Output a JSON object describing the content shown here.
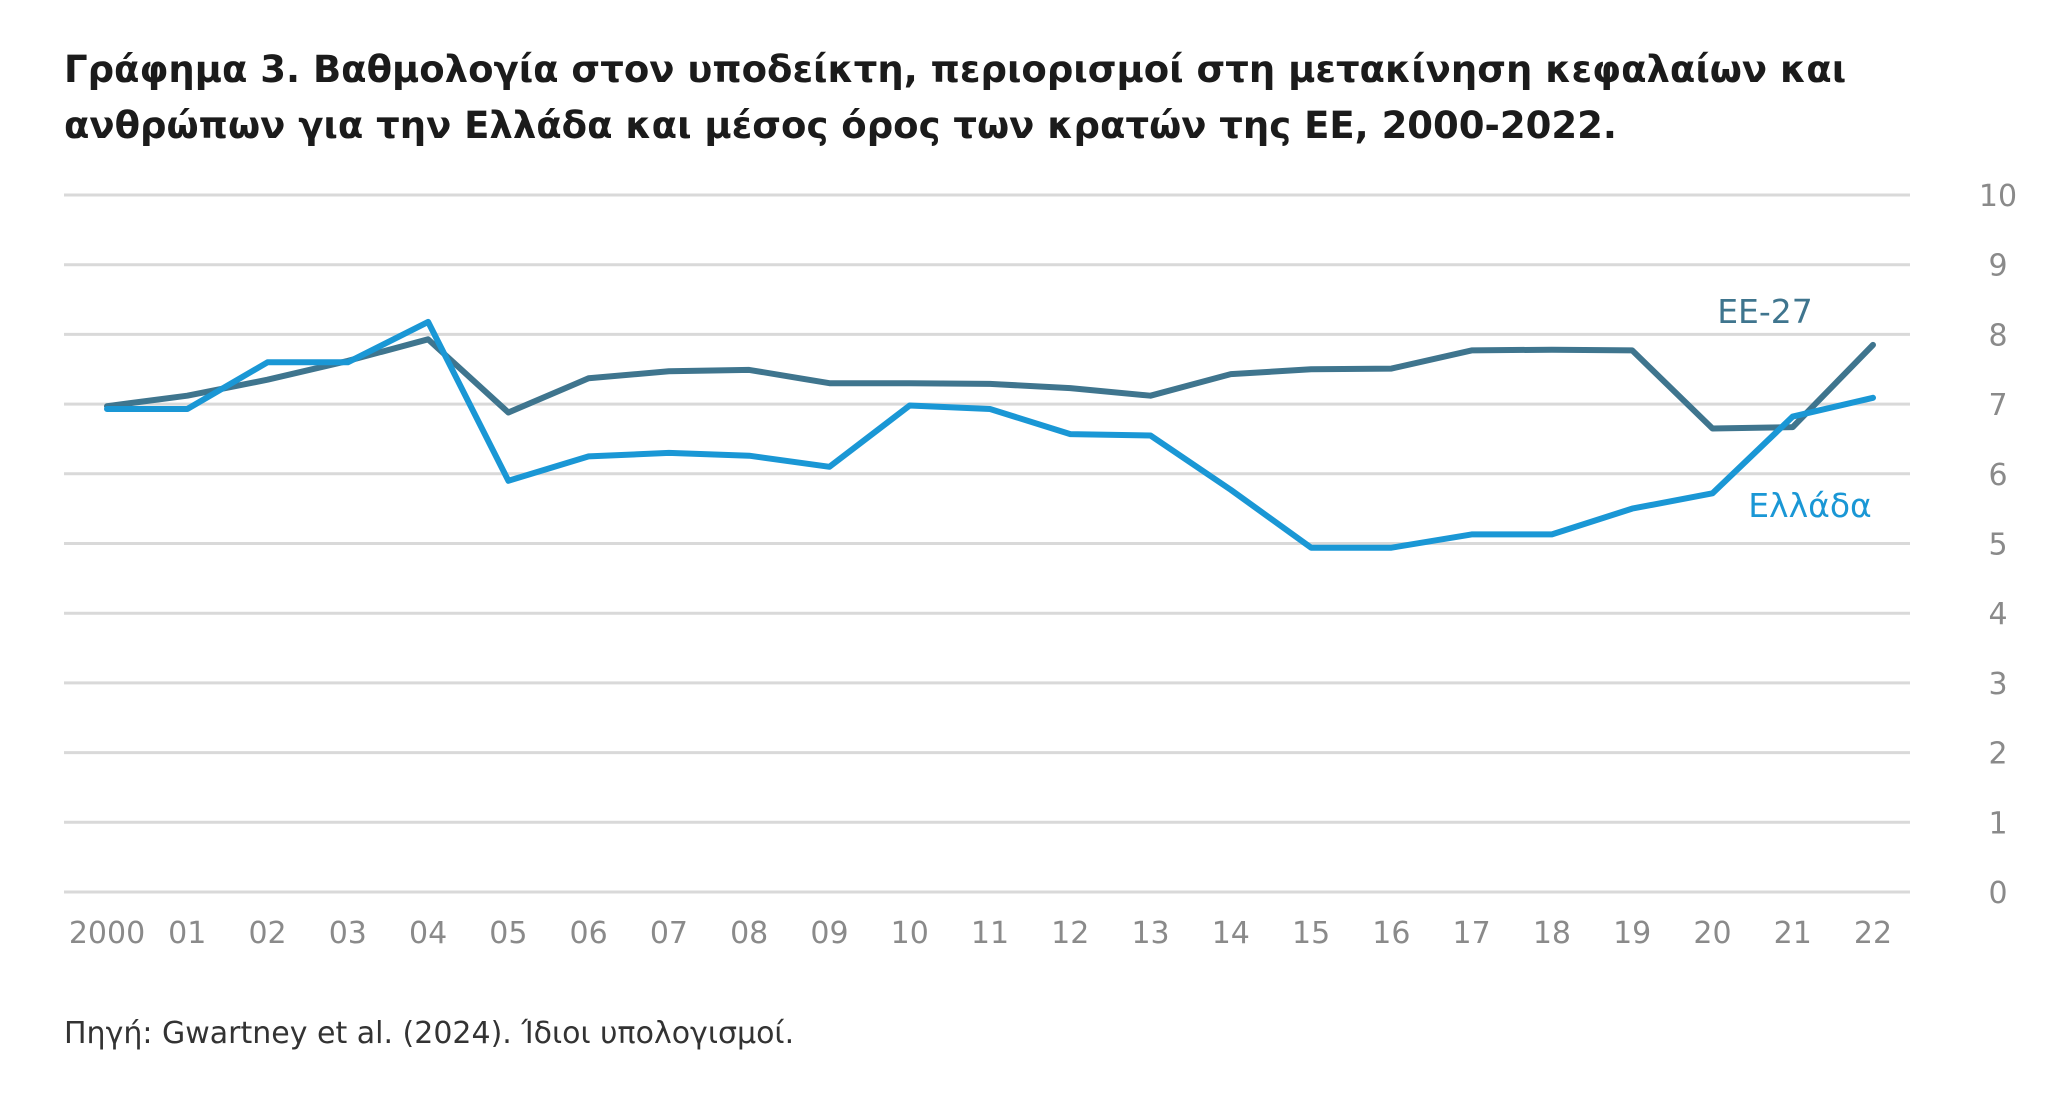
{
  "title_lines": [
    "Γράφημα 3. Βαθμολογία στον υποδείκτη, περιορισμοί στη μετακίνηση κεφαλαίων και",
    "ανθρώπων για την Ελλάδα και μέσος όρος των κρατών της ΕΕ, 2000-2022."
  ],
  "source": "Πηγή: Gwartney et al. (2024). Ίδιοι υπολογισμοί.",
  "chart_data": {
    "type": "line",
    "x": [
      "2000",
      "01",
      "02",
      "03",
      "04",
      "05",
      "06",
      "07",
      "08",
      "09",
      "10",
      "11",
      "12",
      "13",
      "14",
      "15",
      "16",
      "17",
      "18",
      "19",
      "20",
      "21",
      "22"
    ],
    "ylim": [
      0,
      10
    ],
    "yticks": [
      "0",
      "1",
      "2",
      "3",
      "4",
      "5",
      "6",
      "7",
      "8",
      "9",
      "10"
    ],
    "y_axis_side": "right",
    "grid": true,
    "series": [
      {
        "name": "ΕΕ-27",
        "color": "#3f758e",
        "values": [
          6.97,
          7.12,
          7.35,
          7.62,
          7.93,
          6.88,
          7.37,
          7.47,
          7.49,
          7.3,
          7.3,
          7.29,
          7.23,
          7.12,
          7.43,
          7.5,
          7.51,
          7.77,
          7.78,
          7.77,
          6.65,
          6.67,
          7.85
        ]
      },
      {
        "name": "Ελλάδα",
        "color": "#1a97d5",
        "values": [
          6.93,
          6.93,
          7.6,
          7.6,
          8.18,
          5.9,
          6.25,
          6.3,
          6.26,
          6.1,
          6.98,
          6.93,
          6.57,
          6.55,
          5.77,
          4.94,
          4.94,
          5.13,
          5.13,
          5.5,
          5.72,
          6.82,
          7.09
        ]
      }
    ]
  }
}
